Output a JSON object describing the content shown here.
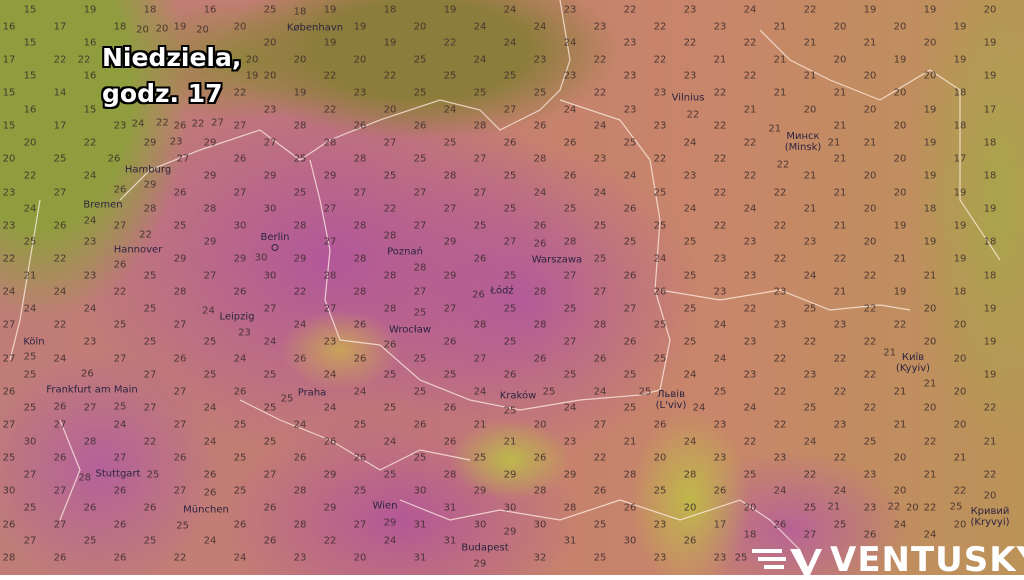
{
  "overlay": {
    "line1": "Niedziela,",
    "line2": "godz. 17"
  },
  "brand": {
    "name": "VENTUSKY",
    "icon": "ventusky-logo-icon"
  },
  "cities": [
    {
      "name": "København"
    },
    {
      "name": "Vilnius"
    },
    {
      "name": "Минск",
      "alt": "(Minsk)"
    },
    {
      "name": "Hamburg"
    },
    {
      "name": "Bremen"
    },
    {
      "name": "Hannover"
    },
    {
      "name": "Berlin"
    },
    {
      "name": "Poznań"
    },
    {
      "name": "Warszawa"
    },
    {
      "name": "Łódź"
    },
    {
      "name": "Leipzig"
    },
    {
      "name": "Wrocław"
    },
    {
      "name": "Köln"
    },
    {
      "name": "Frankfurt am Main"
    },
    {
      "name": "Praha"
    },
    {
      "name": "Kraków"
    },
    {
      "name": "Львів",
      "alt": "(L'viv)"
    },
    {
      "name": "Київ",
      "alt": "(Kyyiv)"
    },
    {
      "name": "Stuttgart"
    },
    {
      "name": "München"
    },
    {
      "name": "Wien"
    },
    {
      "name": "Budapest"
    },
    {
      "name": "Кривий",
      "alt": "(Kryvyi)"
    }
  ],
  "colors": {
    "cool": "#8f9d3e",
    "warm": "#c47e70",
    "hot": "#b2579a",
    "mild": "#bdb84c"
  },
  "temperatures": [
    [
      15,
      19,
      18,
      16,
      25,
      19,
      18,
      19,
      24,
      23,
      22,
      23,
      24,
      22,
      19,
      19,
      20
    ],
    [
      16,
      17,
      18,
      19,
      20,
      18,
      19,
      20,
      24,
      24,
      23,
      22,
      23,
      21,
      20,
      20,
      19
    ],
    [
      15,
      16,
      20,
      20,
      20,
      19,
      19,
      22,
      24,
      24,
      23,
      22,
      22,
      21,
      21,
      20,
      19
    ],
    [
      17,
      22,
      22,
      20,
      20,
      20,
      20,
      25,
      24,
      23,
      22,
      22,
      21,
      21,
      20,
      19,
      19
    ],
    [
      15,
      16,
      22,
      19,
      20,
      22,
      22,
      25,
      25,
      23,
      23,
      23,
      22,
      21,
      20,
      20,
      19
    ],
    [
      15,
      14,
      24,
      22,
      22,
      19,
      23,
      25,
      25,
      25,
      22,
      23,
      22,
      21,
      21,
      20,
      18
    ],
    [
      16,
      15,
      23,
      27,
      23,
      22,
      20,
      24,
      27,
      24,
      23,
      22,
      21,
      20,
      20,
      19,
      17
    ],
    [
      15,
      17,
      23,
      26,
      27,
      28,
      26,
      26,
      28,
      26,
      24,
      23,
      22,
      21,
      21,
      20,
      18
    ],
    [
      20,
      22,
      29,
      29,
      27,
      28,
      27,
      25,
      26,
      26,
      25,
      24,
      22,
      21,
      21,
      19,
      18
    ],
    [
      20,
      25,
      26,
      27,
      26,
      25,
      28,
      25,
      27,
      28,
      23,
      22,
      22,
      22,
      21,
      20,
      17
    ],
    [
      22,
      24,
      29,
      29,
      29,
      29,
      25,
      28,
      25,
      26,
      24,
      23,
      22,
      21,
      20,
      19,
      18
    ],
    [
      23,
      27,
      26,
      26,
      27,
      25,
      27,
      27,
      27,
      24,
      24,
      25,
      22,
      22,
      21,
      20,
      19
    ],
    [
      24,
      24,
      28,
      28,
      30,
      27,
      22,
      27,
      25,
      25,
      26,
      24,
      24,
      21,
      20,
      18,
      19
    ],
    [
      23,
      26,
      27,
      25,
      30,
      28,
      28,
      27,
      25,
      26,
      25,
      25,
      22,
      22,
      21,
      19,
      19
    ],
    [
      25,
      23,
      22,
      29,
      30,
      27,
      28,
      29,
      27,
      28,
      25,
      25,
      23,
      23,
      20,
      19,
      18
    ],
    [
      22,
      22,
      26,
      29,
      29,
      29,
      28,
      28,
      26,
      26,
      25,
      24,
      23,
      22,
      22,
      21,
      19
    ],
    [
      21,
      23,
      25,
      27,
      30,
      28,
      28,
      29,
      25,
      27,
      26,
      25,
      23,
      24,
      22,
      21,
      18
    ],
    [
      24,
      24,
      22,
      28,
      26,
      22,
      28,
      27,
      26,
      28,
      27,
      26,
      23,
      23,
      21,
      19,
      18
    ],
    [
      24,
      24,
      25,
      24,
      27,
      27,
      28,
      27,
      25,
      25,
      27,
      25,
      22,
      25,
      22,
      20,
      19
    ],
    [
      27,
      22,
      25,
      27,
      23,
      24,
      26,
      25,
      28,
      28,
      28,
      25,
      24,
      23,
      23,
      22,
      20
    ],
    [
      25,
      23,
      25,
      25,
      24,
      23,
      26,
      26,
      25,
      27,
      26,
      25,
      23,
      22,
      22,
      20,
      19
    ],
    [
      27,
      24,
      27,
      26,
      24,
      26,
      26,
      25,
      27,
      26,
      26,
      25,
      24,
      22,
      22,
      21,
      20
    ],
    [
      25,
      26,
      27,
      25,
      25,
      24,
      25,
      25,
      26,
      25,
      25,
      24,
      23,
      23,
      22,
      21,
      19
    ],
    [
      26,
      26,
      25,
      27,
      26,
      25,
      24,
      25,
      24,
      25,
      24,
      25,
      25,
      22,
      22,
      21,
      20
    ],
    [
      25,
      27,
      27,
      24,
      25,
      24,
      25,
      26,
      25,
      24,
      25,
      24,
      24,
      25,
      22,
      20,
      22
    ],
    [
      27,
      27,
      24,
      27,
      25,
      24,
      25,
      26,
      21,
      20,
      27,
      26,
      23,
      22,
      23,
      21,
      20
    ],
    [
      30,
      28,
      22,
      24,
      25,
      26,
      24,
      26,
      21,
      23,
      21,
      24,
      22,
      24,
      25,
      22,
      21
    ],
    [
      25,
      26,
      27,
      26,
      25,
      26,
      26,
      25,
      25,
      26,
      22,
      20,
      23,
      23,
      22,
      20,
      21
    ],
    [
      27,
      28,
      25,
      26,
      27,
      29,
      25,
      28,
      29,
      29,
      28,
      28,
      25,
      22,
      23,
      21,
      22
    ],
    [
      30,
      27,
      26,
      27,
      25,
      28,
      25,
      30,
      29,
      28,
      26,
      25,
      26,
      24,
      24,
      20,
      22
    ],
    [
      25,
      26,
      26,
      26,
      26,
      29,
      29,
      31,
      30,
      28,
      26,
      20,
      20,
      25,
      23,
      22,
      20
    ],
    [
      26,
      27,
      26,
      25,
      26,
      28,
      27,
      31,
      30,
      30,
      25,
      23,
      17,
      26,
      25,
      24,
      20
    ],
    [
      27,
      25,
      25,
      24,
      26,
      22,
      24,
      31,
      29,
      31,
      30,
      26,
      18,
      27,
      26,
      24,
      25
    ],
    [
      28,
      26,
      26,
      22,
      24,
      23,
      20,
      31,
      29,
      32,
      25,
      23,
      23,
      25,
      21,
      22,
      20
    ]
  ]
}
